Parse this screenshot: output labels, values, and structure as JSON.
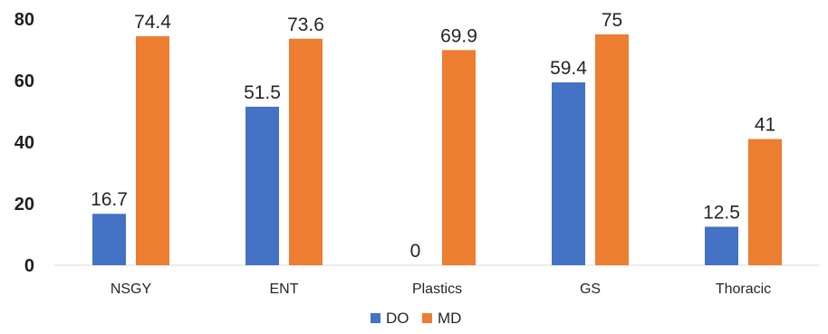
{
  "chart_data": {
    "type": "bar",
    "categories": [
      "NSGY",
      "ENT",
      "Plastics",
      "GS",
      "Thoracic"
    ],
    "series": [
      {
        "name": "DO",
        "values": [
          16.7,
          51.5,
          0,
          59.4,
          12.5
        ],
        "labels": [
          "16.7",
          "51.5",
          "0",
          "59.4",
          "12.5"
        ],
        "color": "#4472c4"
      },
      {
        "name": "MD",
        "values": [
          74.4,
          73.6,
          69.9,
          75,
          41
        ],
        "labels": [
          "74.4",
          "73.6",
          "69.9",
          "75",
          "41"
        ],
        "color": "#ed7d31"
      }
    ],
    "yticks": [
      "0",
      "20",
      "40",
      "60",
      "80"
    ],
    "ylim": [
      0,
      80
    ],
    "grid": false,
    "legend": "bottom-center"
  }
}
